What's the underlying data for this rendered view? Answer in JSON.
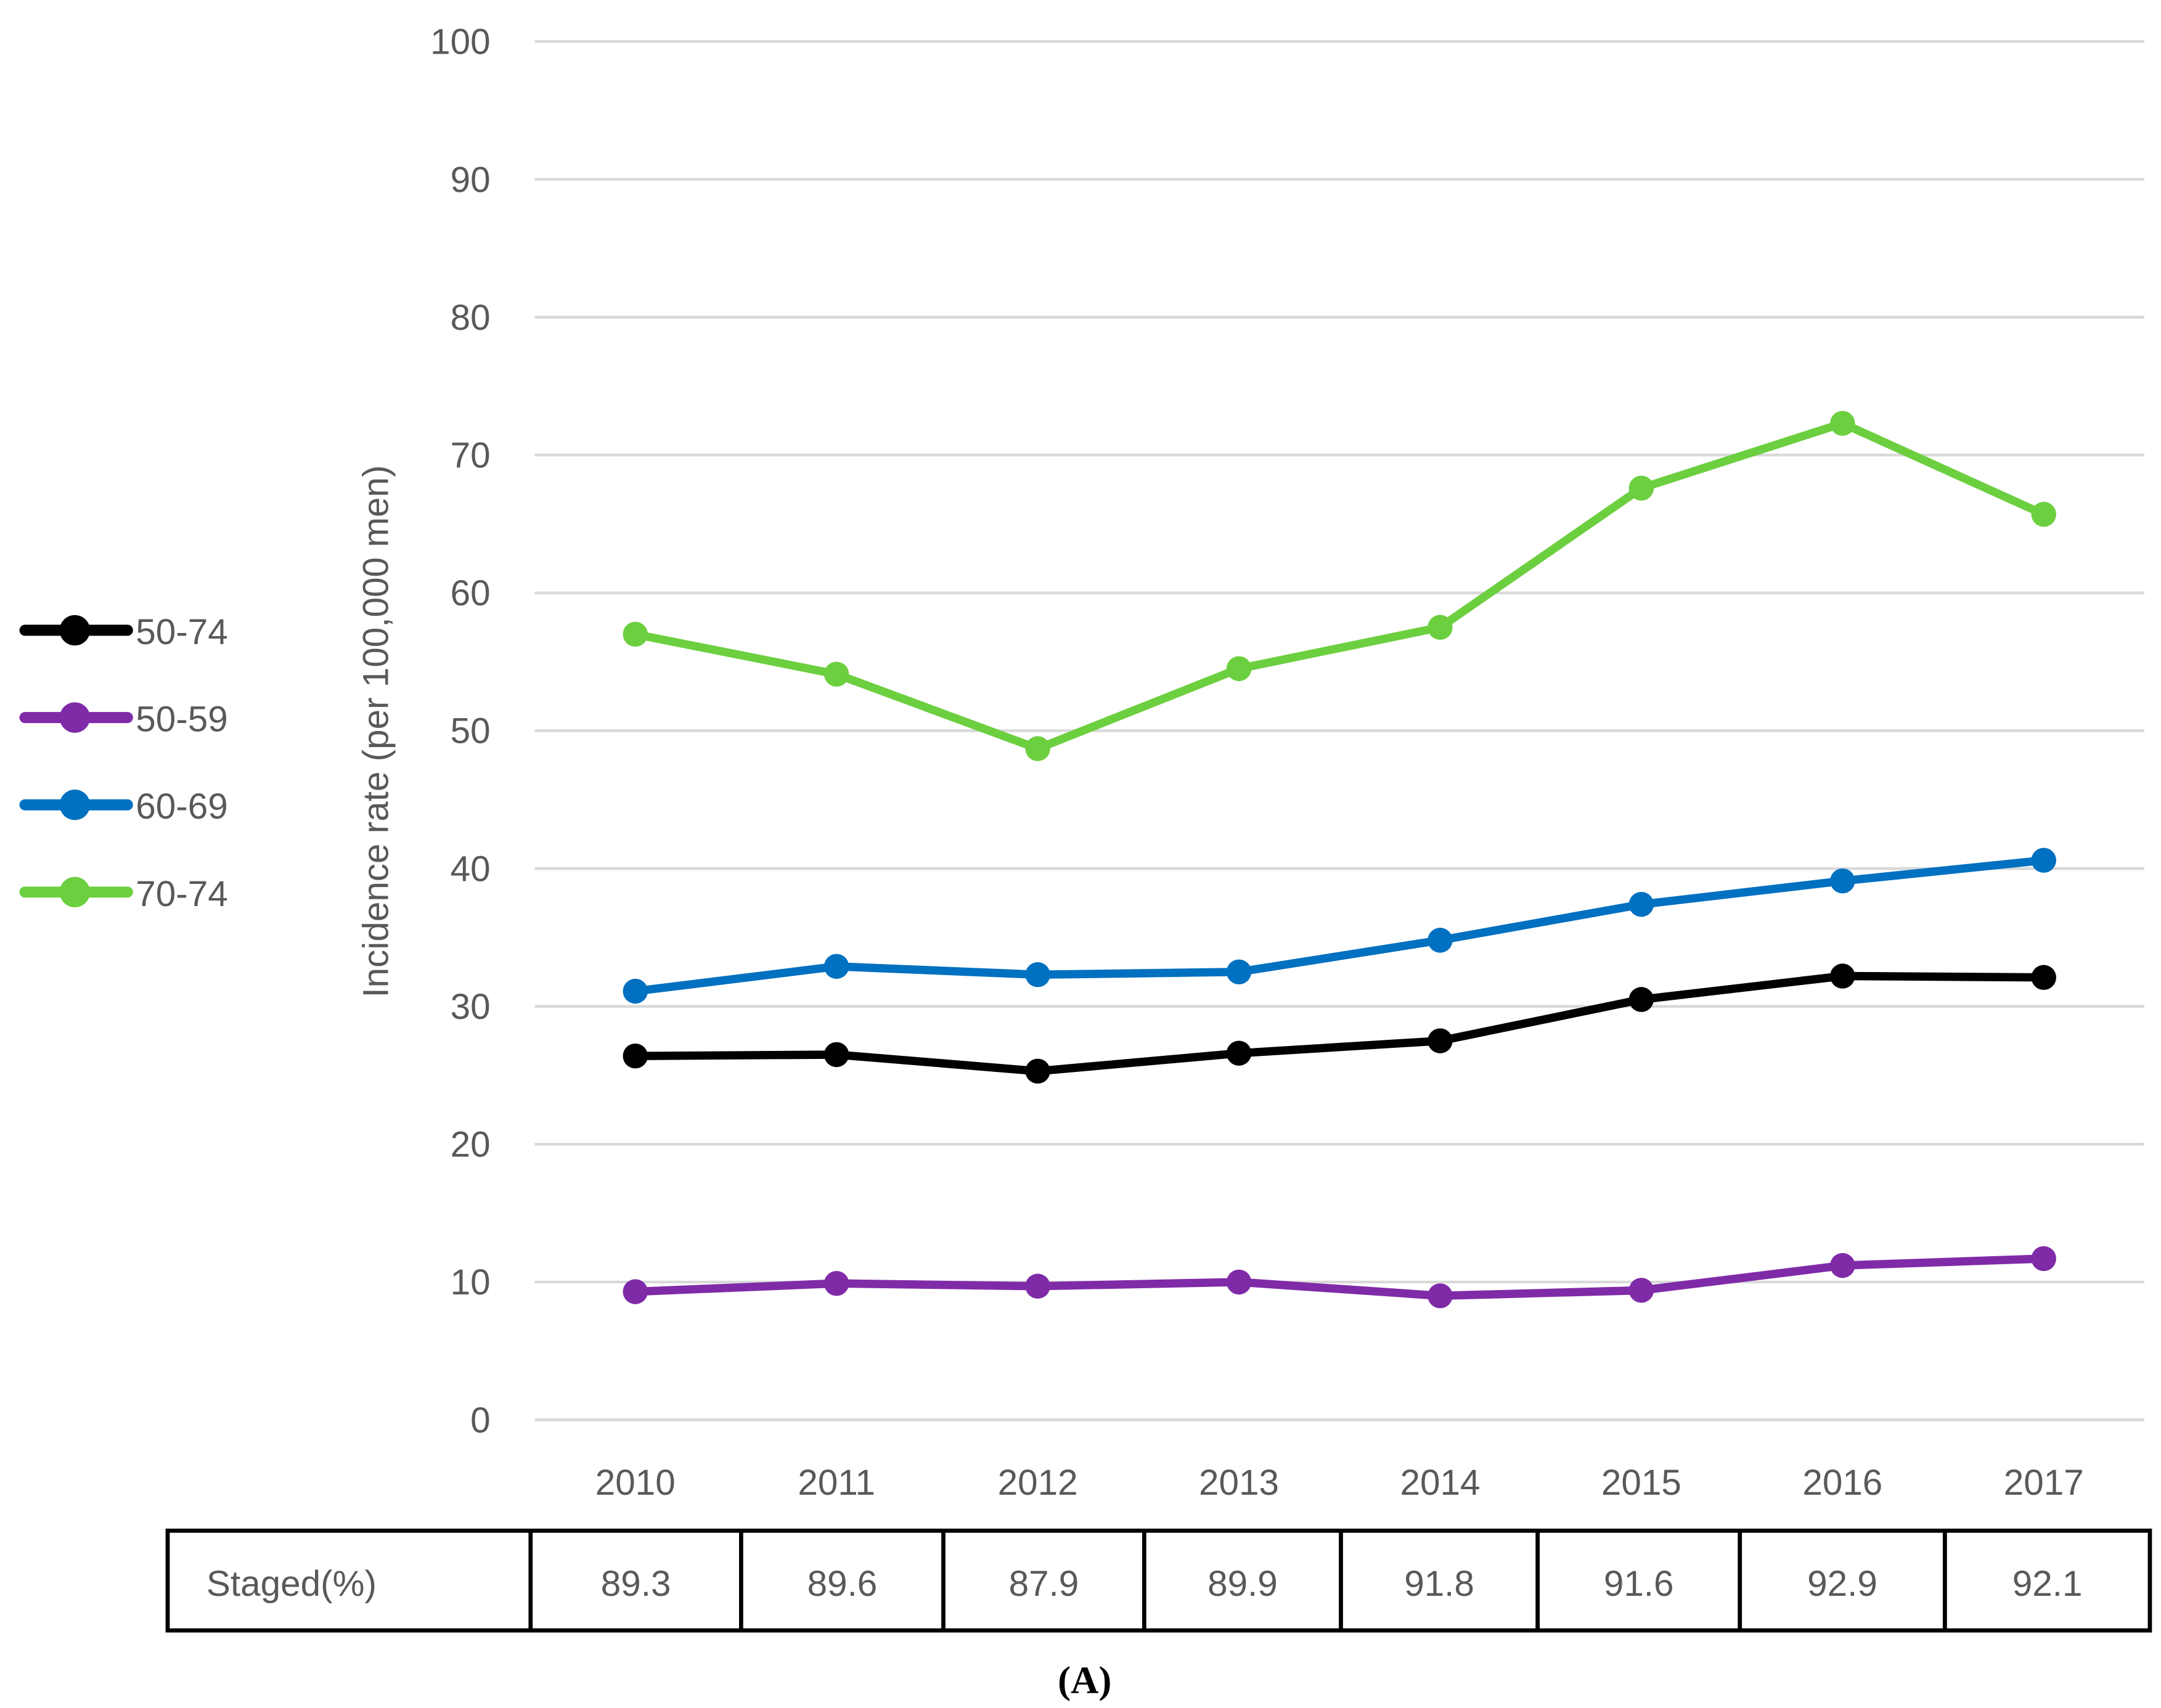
{
  "chart_data": {
    "type": "line",
    "ylabel": "Incidence rate (per 100,000 men)",
    "xlabel": "",
    "ylim": [
      0,
      100
    ],
    "yticks": [
      "0",
      "10",
      "20",
      "30",
      "40",
      "50",
      "60",
      "70",
      "80",
      "90",
      "100"
    ],
    "categories": [
      "2010",
      "2011",
      "2012",
      "2013",
      "2014",
      "2015",
      "2016",
      "2017"
    ],
    "grid": true,
    "legend_position": "left",
    "series": [
      {
        "name": "50-74",
        "color": "#000000",
        "values": [
          26.4,
          26.5,
          25.3,
          26.6,
          27.5,
          30.5,
          32.2,
          32.1
        ]
      },
      {
        "name": "50-59",
        "color": "#7F2BA8",
        "values": [
          9.3,
          9.9,
          9.7,
          10.0,
          9.0,
          9.4,
          11.2,
          11.7
        ]
      },
      {
        "name": "60-69",
        "color": "#0070C0",
        "values": [
          31.1,
          32.9,
          32.3,
          32.5,
          34.8,
          37.4,
          39.1,
          40.6
        ]
      },
      {
        "name": "70-74",
        "color": "#6CCF3F",
        "values": [
          57.0,
          54.1,
          48.7,
          54.5,
          57.5,
          67.6,
          72.3,
          65.7
        ]
      }
    ],
    "table": {
      "row_label": "Staged(%)",
      "values": [
        "89.3",
        "89.6",
        "87.9",
        "89.9",
        "91.8",
        "91.6",
        "92.9",
        "92.1"
      ]
    },
    "caption": "(A)"
  }
}
